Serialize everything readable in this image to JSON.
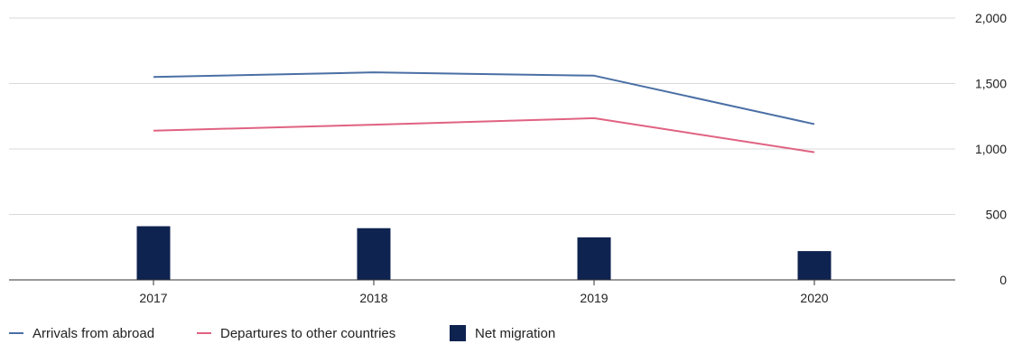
{
  "chart_data": {
    "type": "bar+line",
    "title": "",
    "xlabel": "",
    "ylabel": "",
    "categories": [
      "2017",
      "2018",
      "2019",
      "2020"
    ],
    "ylim": [
      0,
      2000
    ],
    "yticks": [
      {
        "value": 0,
        "label": "0"
      },
      {
        "value": 500,
        "label": "500"
      },
      {
        "value": 1000,
        "label": "1,000"
      },
      {
        "value": 1500,
        "label": "1,500"
      },
      {
        "value": 2000,
        "label": "2,000"
      }
    ],
    "y_axis_side": "right",
    "grid": "horizontal",
    "legend_position": "bottom-left",
    "series": [
      {
        "name": "Arrivals from abroad",
        "kind": "line",
        "color": "#4a6fa5",
        "values": [
          1550,
          1585,
          1560,
          1190
        ]
      },
      {
        "name": "Departures to other countries",
        "kind": "line",
        "color": "#e06282",
        "values": [
          1140,
          1185,
          1235,
          975
        ]
      },
      {
        "name": "Net migration",
        "kind": "bar",
        "color": "#0f2350",
        "values": [
          410,
          395,
          325,
          220
        ]
      }
    ]
  }
}
